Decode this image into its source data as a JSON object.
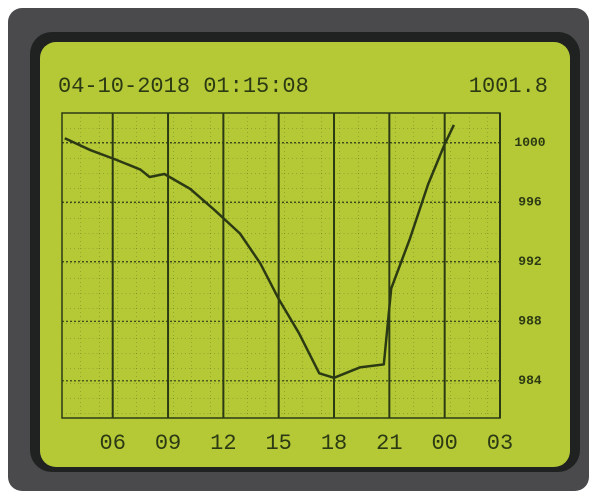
{
  "chart_data": {
    "type": "line",
    "title": "04-10-2018 01:15:08",
    "annotations": [
      "1001.8"
    ],
    "x": [
      3.4,
      4.8,
      6.1,
      7.5,
      8.0,
      8.8,
      10.2,
      11.5,
      12.9,
      14.0,
      15.0,
      16.1,
      17.2,
      18.0,
      19.4,
      20.7,
      21.1,
      22.1,
      23.1,
      24.0,
      24.5
    ],
    "series": [
      {
        "color": "#2c3a14",
        "values": [
          1000.3,
          999.5,
          998.9,
          998.2,
          997.7,
          997.9,
          996.9,
          995.5,
          993.9,
          991.9,
          989.5,
          987.2,
          984.5,
          984.2,
          984.9,
          985.1,
          990.2,
          993.5,
          997.2,
          999.9,
          1001.2
        ]
      }
    ],
    "xlim": [
      3.25,
      27
    ],
    "xticks": [
      {
        "value": 6,
        "label": "06"
      },
      {
        "value": 9,
        "label": "09"
      },
      12,
      15,
      18,
      21,
      {
        "value": 24,
        "label": "00"
      },
      {
        "value": 27,
        "label": "03"
      }
    ],
    "ylim": [
      981.5,
      1002
    ],
    "yticks": [
      1000,
      996,
      992,
      988,
      984
    ],
    "grid": true
  }
}
